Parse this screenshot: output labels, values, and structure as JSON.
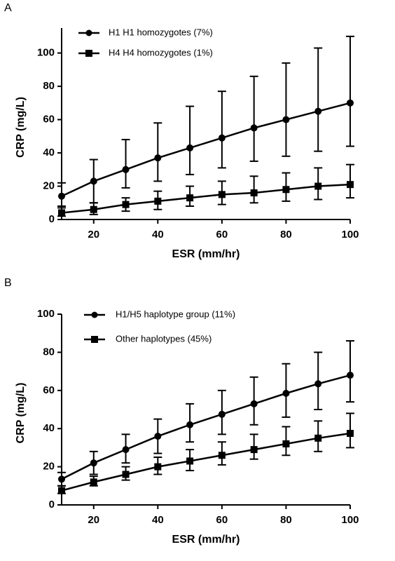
{
  "chart_data": [
    {
      "type": "line",
      "panel": "A",
      "xlabel": "ESR (mm/hr)",
      "ylabel": "CRP (mg/L)",
      "x": [
        10,
        20,
        30,
        40,
        50,
        60,
        70,
        80,
        90,
        100
      ],
      "xlim": [
        10,
        100
      ],
      "xticks": [
        20,
        40,
        60,
        80,
        100
      ],
      "ylim": [
        0,
        115
      ],
      "yticks": [
        0,
        20,
        40,
        60,
        80,
        100
      ],
      "series": [
        {
          "name": "H1 H1 homozygotes (7%)",
          "color": "#000000",
          "marker": "circle",
          "values": [
            14,
            23,
            30,
            37,
            43,
            49,
            55,
            60,
            65,
            70
          ],
          "error_lower": [
            7,
            10,
            19,
            23,
            27,
            31,
            35,
            38,
            41,
            44
          ],
          "error_upper": [
            22,
            36,
            48,
            58,
            68,
            77,
            86,
            94,
            103,
            110
          ]
        },
        {
          "name": "H4 H4 homozygotes (1%)",
          "color": "#000000",
          "marker": "square",
          "values": [
            4,
            6,
            9,
            11,
            13,
            15,
            16,
            18,
            20,
            21
          ],
          "error_lower": [
            2,
            3,
            5,
            6,
            8,
            9,
            10,
            11,
            12,
            13
          ],
          "error_upper": [
            8,
            10,
            13,
            17,
            20,
            23,
            26,
            28,
            31,
            33
          ]
        }
      ]
    },
    {
      "type": "line",
      "panel": "B",
      "xlabel": "ESR (mm/hr)",
      "ylabel": "CRP (mg/L)",
      "x": [
        10,
        20,
        30,
        40,
        50,
        60,
        70,
        80,
        90,
        100
      ],
      "xlim": [
        10,
        100
      ],
      "xticks": [
        20,
        40,
        60,
        80,
        100
      ],
      "ylim": [
        0,
        100
      ],
      "yticks": [
        0,
        20,
        40,
        60,
        80,
        100
      ],
      "series": [
        {
          "name": "H1/H5 haplotype group (11%)",
          "color": "#000000",
          "marker": "circle",
          "values": [
            13.5,
            22,
            29,
            36,
            42,
            47.5,
            53,
            58.5,
            63.5,
            68
          ],
          "error_lower": [
            10,
            16,
            22,
            27,
            33,
            37,
            42,
            46,
            50,
            54
          ],
          "error_upper": [
            17,
            28,
            37,
            45,
            53,
            60,
            67,
            74,
            80,
            86
          ]
        },
        {
          "name": "Other haplotypes (45%)",
          "color": "#000000",
          "marker": "square",
          "values": [
            7.5,
            12,
            16,
            20,
            23,
            26,
            29,
            32,
            35,
            37.5
          ],
          "error_lower": [
            6,
            10,
            13,
            16,
            18,
            21,
            24,
            26,
            28,
            30
          ],
          "error_upper": [
            10,
            15,
            20,
            25,
            29,
            33,
            37,
            41,
            44,
            48
          ]
        }
      ]
    }
  ]
}
